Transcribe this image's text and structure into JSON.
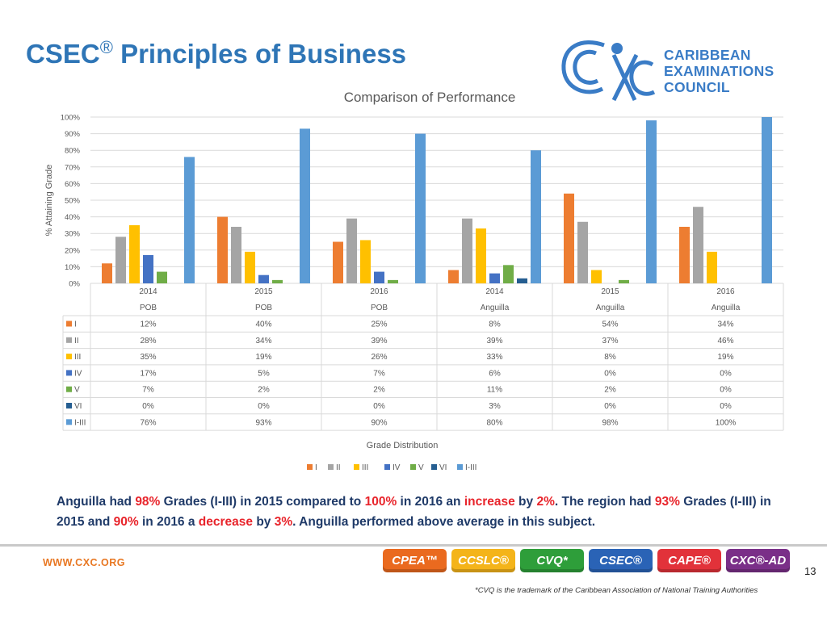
{
  "slide": {
    "title": "CSEC",
    "title_sup": "®",
    "title_rest": " Principles of Business"
  },
  "logo": {
    "icon": "cxc-logo-icon",
    "line1": "CARIBBEAN",
    "line2": "EXAMINATIONS",
    "line3": "COUNCIL",
    "color": "#3a7cc6"
  },
  "chart_data": {
    "type": "bar",
    "title": "Comparison of Performance",
    "ylabel": "% Attaining Grade",
    "xlabel": "Grade Distribution",
    "ylim": [
      0,
      100
    ],
    "yticks": [
      "0%",
      "10%",
      "20%",
      "30%",
      "40%",
      "50%",
      "60%",
      "70%",
      "80%",
      "90%",
      "100%"
    ],
    "grid": true,
    "legend_position": "bottom",
    "categories": [
      {
        "year": "2014",
        "group": "POB"
      },
      {
        "year": "2015",
        "group": "POB"
      },
      {
        "year": "2016",
        "group": "POB"
      },
      {
        "year": "2014",
        "group": "Anguilla"
      },
      {
        "year": "2015",
        "group": "Anguilla"
      },
      {
        "year": "2016",
        "group": "Anguilla"
      }
    ],
    "series": [
      {
        "name": "I",
        "color": "#ed7d31",
        "values": [
          12,
          40,
          25,
          8,
          54,
          34
        ],
        "labels": [
          "12%",
          "40%",
          "25%",
          "8%",
          "54%",
          "34%"
        ]
      },
      {
        "name": "II",
        "color": "#a5a5a5",
        "values": [
          28,
          34,
          39,
          39,
          37,
          46
        ],
        "labels": [
          "28%",
          "34%",
          "39%",
          "39%",
          "37%",
          "46%"
        ]
      },
      {
        "name": "III",
        "color": "#ffc000",
        "values": [
          35,
          19,
          26,
          33,
          8,
          19
        ],
        "labels": [
          "35%",
          "19%",
          "26%",
          "33%",
          "8%",
          "19%"
        ]
      },
      {
        "name": "IV",
        "color": "#4472c4",
        "values": [
          17,
          5,
          7,
          6,
          0,
          0
        ],
        "labels": [
          "17%",
          "5%",
          "7%",
          "6%",
          "0%",
          "0%"
        ]
      },
      {
        "name": "V",
        "color": "#70ad47",
        "values": [
          7,
          2,
          2,
          11,
          2,
          0
        ],
        "labels": [
          "7%",
          "2%",
          "2%",
          "11%",
          "2%",
          "0%"
        ]
      },
      {
        "name": "VI",
        "color": "#255e91",
        "values": [
          0,
          0,
          0,
          3,
          0,
          0
        ],
        "labels": [
          "0%",
          "0%",
          "0%",
          "3%",
          "0%",
          "0%"
        ]
      },
      {
        "name": "I-III",
        "color": "#5b9bd5",
        "values": [
          76,
          93,
          90,
          80,
          98,
          100
        ],
        "labels": [
          "76%",
          "93%",
          "90%",
          "80%",
          "98%",
          "100%"
        ]
      }
    ]
  },
  "summary": {
    "p1": "Anguilla had ",
    "v1": "98%",
    "p2": " Grades (I-III) in 2015 compared to ",
    "v2": "100%",
    "p3": " in 2016 an ",
    "v3": "increase",
    "p4": " by ",
    "v4": "2%",
    "p5": ". The region had ",
    "v5": "93%",
    "p6": " Grades (I-III) in 2015 and ",
    "v6": "90%",
    "p7": " in 2016 a ",
    "v7": "decrease",
    "p8": " by ",
    "v8": "3%",
    "p9": ". Anguilla performed above average in this subject.",
    "text_color": "#1f3a68",
    "highlight_color": "#e8242b"
  },
  "footer": {
    "url": "WWW.CXC.ORG",
    "badges": [
      {
        "label": "CPEA™",
        "color": "#ea6a1f"
      },
      {
        "label": "CCSLC®",
        "color": "#f4b41a"
      },
      {
        "label": "CVQ*",
        "color": "#2e9e3a"
      },
      {
        "label": "CSEC®",
        "color": "#2a63b6"
      },
      {
        "label": "CAPE®",
        "color": "#e2323a"
      },
      {
        "label": "CXC®-AD",
        "color": "#7a2f88"
      }
    ],
    "page_number": "13",
    "trademark": "*CVQ is the trademark of the Caribbean Association of National Training Authorities"
  }
}
